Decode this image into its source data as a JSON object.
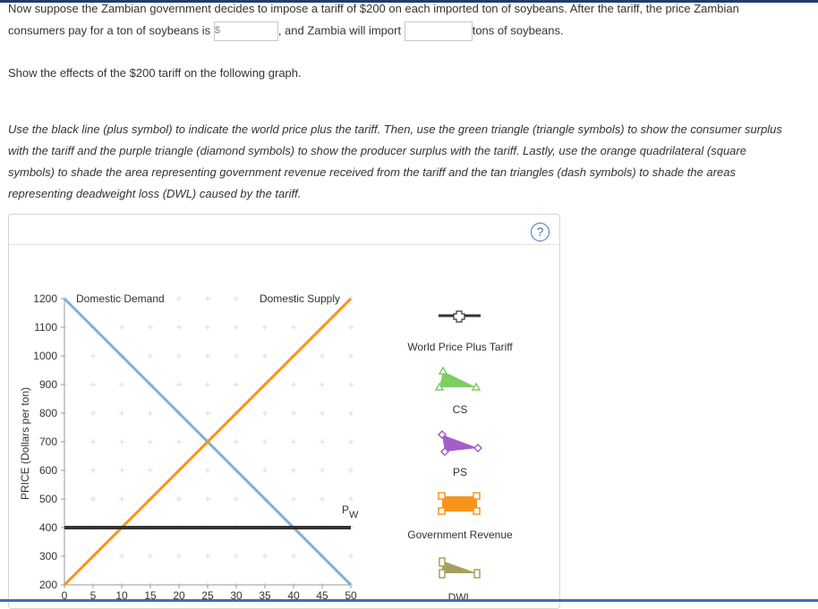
{
  "question": {
    "line1": "Now suppose the Zambian government decides to impose a tariff of $200 on each imported ton of soybeans. After the tariff, the price Zambian",
    "line2_pre": "consumers pay for a ton of soybeans is",
    "dollar_sign": "$",
    "line2_mid": ", and Zambia will import",
    "line2_post": "tons of soybeans.",
    "show_effects": "Show the effects of the $200 tariff on the following graph."
  },
  "instructions": [
    "Use the black line (plus symbol) to indicate the world price plus the tariff. Then, use the green triangle (triangle symbols) to show the consumer surplus",
    "with the tariff and the purple triangle (diamond symbols) to show the producer surplus with the tariff. Lastly, use the orange quadrilateral (square",
    "symbols) to shade the area representing government revenue received from the tariff and the tan triangles (dash symbols) to shade the areas",
    "representing deadweight loss (DWL) caused by the tariff."
  ],
  "help_label": "?",
  "tools": {
    "wppt_label": "World Price Plus Tariff",
    "cs_label": "CS",
    "ps_label": "PS",
    "gr_label": "Government Revenue",
    "dwl_label": "DWL"
  },
  "colors": {
    "demand": "#7fb0d5",
    "supply": "#f7941d",
    "world_price": "#333333",
    "cs": "#7ccf60",
    "ps": "#a45ec8",
    "gov_revenue": "#f7941d",
    "dwl": "#a4a060"
  },
  "chart_data": {
    "type": "line",
    "ylabel": "PRICE (Dollars per ton)",
    "xlim": [
      0,
      50
    ],
    "ylim": [
      200,
      1200
    ],
    "xticks": [
      0,
      5,
      10,
      15,
      20,
      25,
      30,
      35,
      40,
      45,
      50
    ],
    "yticks": [
      200,
      300,
      400,
      500,
      600,
      700,
      800,
      900,
      1000,
      1100,
      1200
    ],
    "series": [
      {
        "name": "Domestic Demand",
        "color": "#7fb0d5",
        "x": [
          0,
          50
        ],
        "y": [
          1200,
          200
        ]
      },
      {
        "name": "Domestic Supply",
        "color": "#f7941d",
        "x": [
          0,
          50
        ],
        "y": [
          200,
          1200
        ]
      },
      {
        "name": "P",
        "subscript": "W",
        "color": "#333333",
        "x": [
          0,
          50
        ],
        "y": [
          400,
          400
        ]
      }
    ]
  }
}
